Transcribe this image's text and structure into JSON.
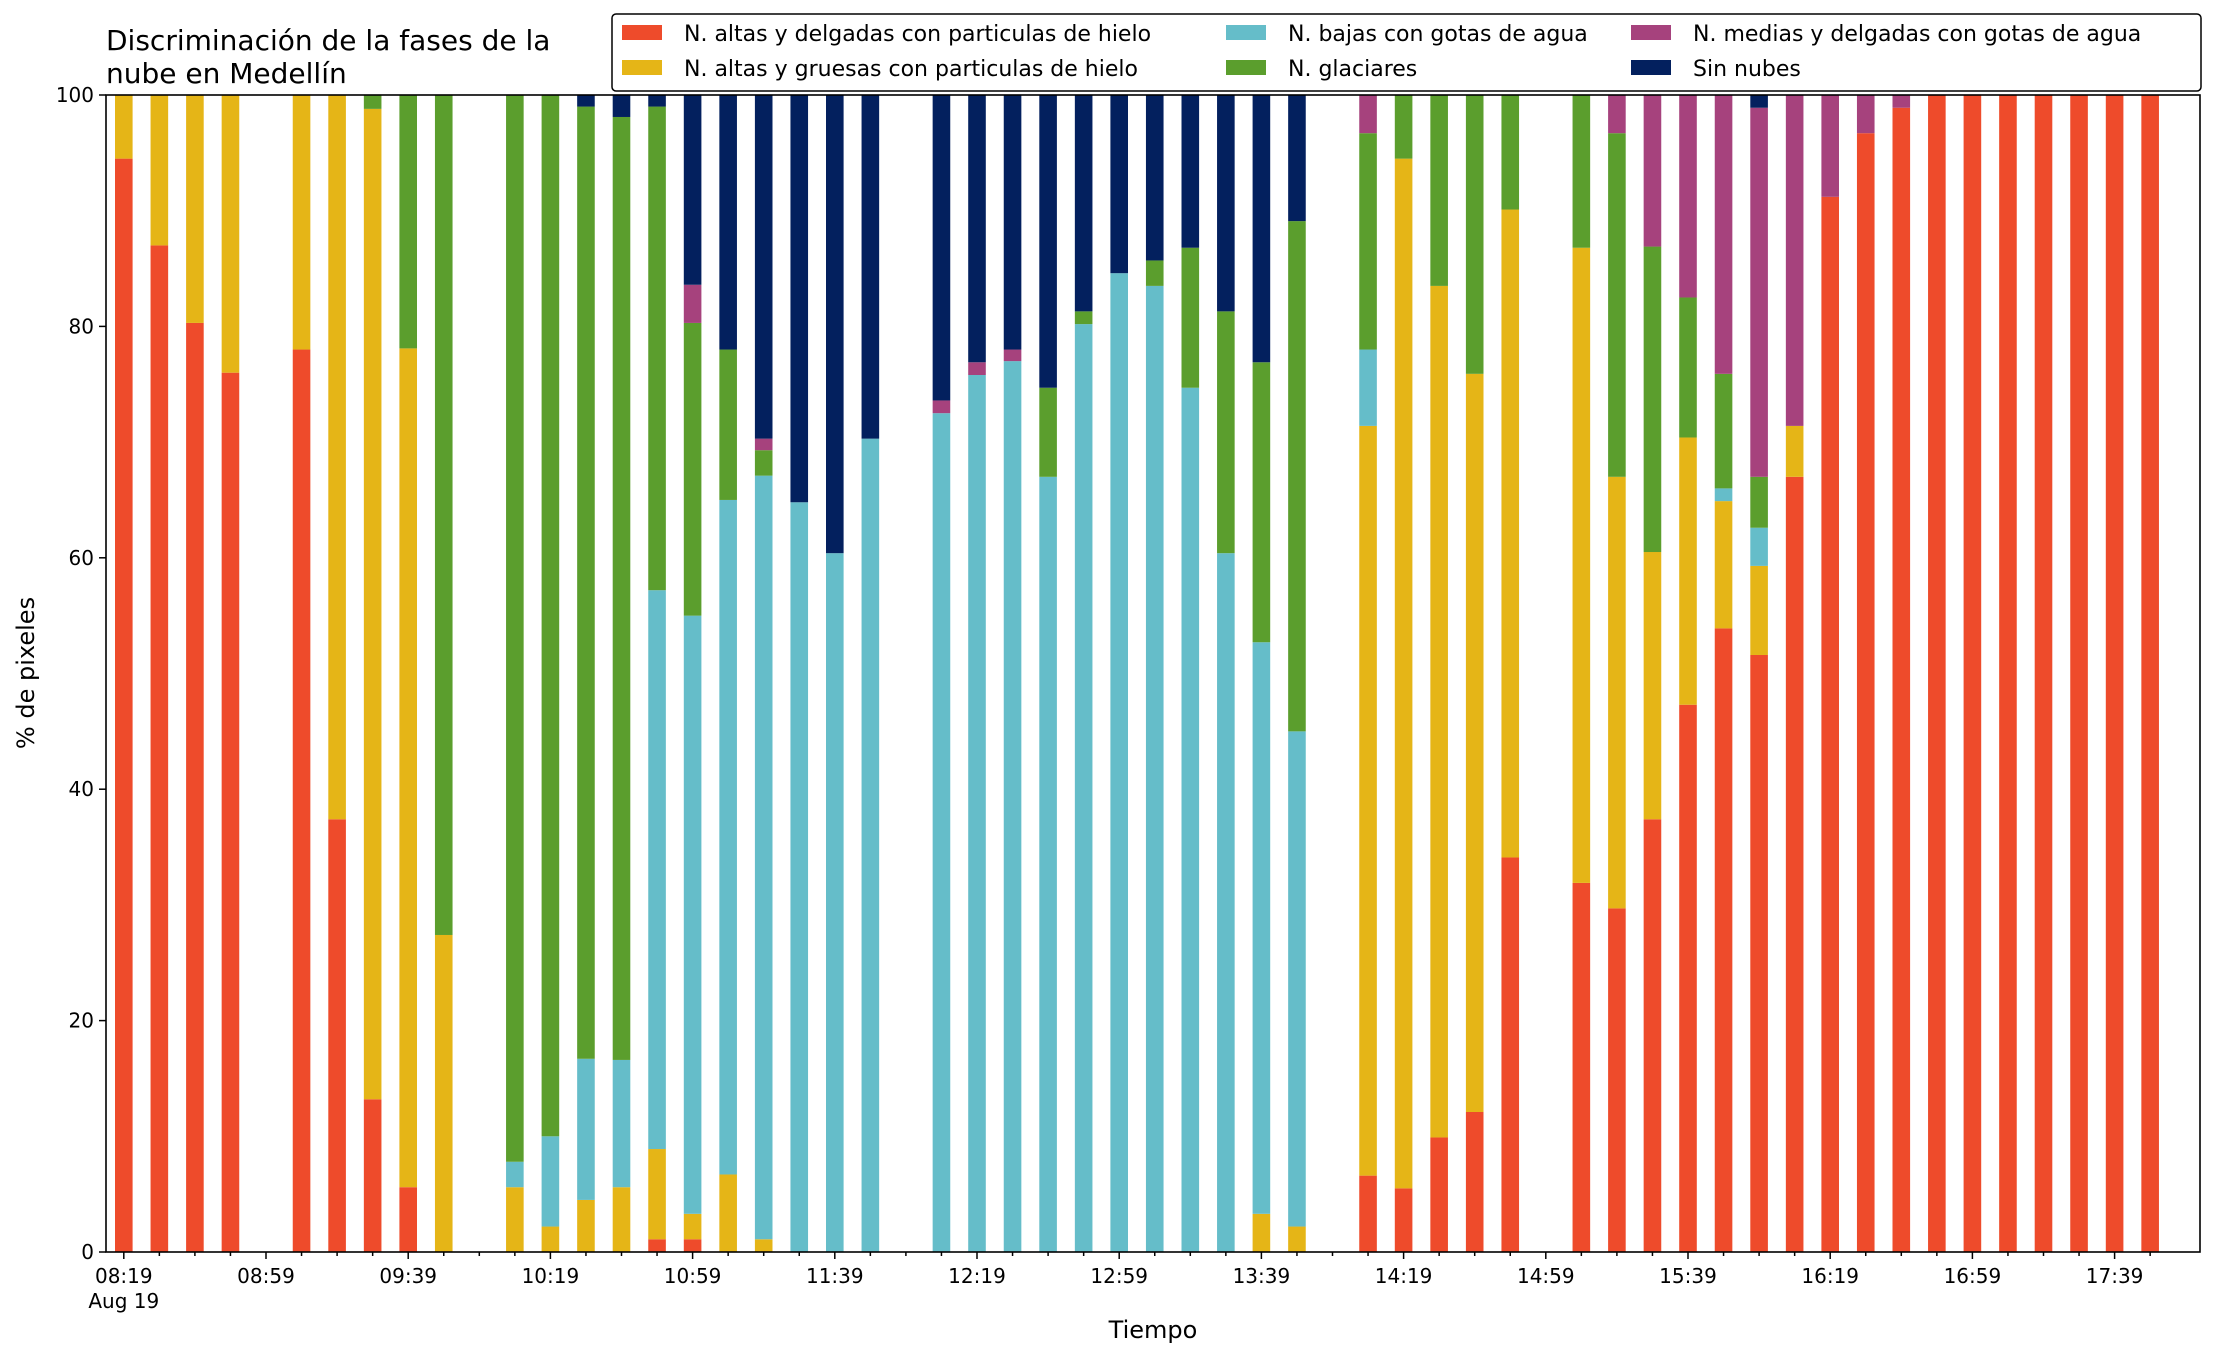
{
  "chart_data": {
    "type": "bar",
    "stacked": true,
    "title_lines": [
      "Discriminación de la fases de la",
      "nube en Medellín"
    ],
    "xlabel": "Tiempo",
    "ylabel": "% de pixeles",
    "ylim": [
      0,
      100
    ],
    "yticks": [
      "0",
      "20",
      "40",
      "60",
      "80",
      "100"
    ],
    "xtick_labels": [
      "08:19",
      "08:59",
      "09:39",
      "10:19",
      "10:59",
      "11:39",
      "12:19",
      "12:59",
      "13:39",
      "14:19",
      "14:59",
      "15:39",
      "16:19",
      "16:59",
      "17:39"
    ],
    "xtick_sublabel": "Aug 19",
    "grid": false,
    "legend_position": "top-right",
    "series": [
      {
        "name": "N. altas y delgadas con particulas de hielo",
        "color": "#ee4b2b"
      },
      {
        "name": "N. altas y gruesas con particulas de hielo",
        "color": "#e5b517"
      },
      {
        "name": "N. bajas con gotas de agua",
        "color": "#65bdc9"
      },
      {
        "name": "N. glaciares",
        "color": "#5b9e2d"
      },
      {
        "name": "N. medias y delgadas con gotas de agua",
        "color": "#a6427d"
      },
      {
        "name": "Sin nubes",
        "color": "#03205e"
      }
    ],
    "bars": [
      {
        "slot": 0,
        "values": [
          94.5,
          5.5,
          0,
          0,
          0,
          0
        ]
      },
      {
        "slot": 1,
        "values": [
          87,
          13,
          0,
          0,
          0,
          0
        ]
      },
      {
        "slot": 2,
        "values": [
          80.3,
          19.7,
          0,
          0,
          0,
          0
        ]
      },
      {
        "slot": 3,
        "values": [
          76,
          24,
          0,
          0,
          0,
          0
        ]
      },
      {
        "slot": 5,
        "values": [
          78,
          22,
          0,
          0,
          0,
          0
        ]
      },
      {
        "slot": 6,
        "values": [
          37.4,
          62.6,
          0,
          0,
          0,
          0
        ]
      },
      {
        "slot": 7,
        "values": [
          13.2,
          85.6,
          0,
          1.2,
          0,
          0
        ]
      },
      {
        "slot": 8,
        "values": [
          5.6,
          72.5,
          0,
          21.9,
          0,
          0
        ]
      },
      {
        "slot": 9,
        "values": [
          0,
          27.4,
          0,
          72.6,
          0,
          0
        ]
      },
      {
        "slot": 11,
        "values": [
          0,
          5.6,
          2.2,
          92.2,
          0,
          0
        ]
      },
      {
        "slot": 12,
        "values": [
          0,
          2.2,
          7.8,
          90,
          0,
          0
        ]
      },
      {
        "slot": 13,
        "values": [
          0,
          4.5,
          12.2,
          82.3,
          0,
          1
        ]
      },
      {
        "slot": 14,
        "values": [
          0,
          5.6,
          11,
          81.5,
          0,
          1.9
        ]
      },
      {
        "slot": 15,
        "values": [
          1.1,
          7.8,
          48.3,
          41.8,
          0,
          1
        ]
      },
      {
        "slot": 16,
        "values": [
          1.1,
          2.2,
          51.7,
          25.3,
          3.3,
          16.4
        ]
      },
      {
        "slot": 17,
        "values": [
          0,
          6.7,
          58.3,
          13,
          0,
          22
        ]
      },
      {
        "slot": 18,
        "values": [
          0,
          1.1,
          66,
          2.2,
          1,
          29.7
        ]
      },
      {
        "slot": 19,
        "values": [
          0,
          0,
          64.8,
          0,
          0,
          35.2
        ]
      },
      {
        "slot": 20,
        "values": [
          0,
          0,
          60.4,
          0,
          0,
          39.6
        ]
      },
      {
        "slot": 21,
        "values": [
          0,
          0,
          70.3,
          0,
          0,
          29.7
        ]
      },
      {
        "slot": 23,
        "values": [
          0,
          0,
          72.5,
          0,
          1.1,
          26.4
        ]
      },
      {
        "slot": 24,
        "values": [
          0,
          0,
          75.8,
          0,
          1.1,
          23.1
        ]
      },
      {
        "slot": 25,
        "values": [
          0,
          0,
          77,
          0,
          1,
          22
        ]
      },
      {
        "slot": 26,
        "values": [
          0,
          0,
          67,
          7.7,
          0,
          25.3
        ]
      },
      {
        "slot": 27,
        "values": [
          0,
          0,
          80.2,
          1.1,
          0,
          18.7
        ]
      },
      {
        "slot": 28,
        "values": [
          0,
          0,
          84.6,
          0,
          0,
          15.4
        ]
      },
      {
        "slot": 29,
        "values": [
          0,
          0,
          83.5,
          2.2,
          0,
          14.3
        ]
      },
      {
        "slot": 30,
        "values": [
          0,
          0,
          74.7,
          12.1,
          0,
          13.2
        ]
      },
      {
        "slot": 31,
        "values": [
          0,
          0,
          60.4,
          20.9,
          0,
          18.7
        ]
      },
      {
        "slot": 32,
        "values": [
          0,
          3.3,
          49.4,
          24.2,
          0,
          23.1
        ]
      },
      {
        "slot": 33,
        "values": [
          0,
          2.2,
          42.8,
          44.1,
          0,
          10.9
        ]
      },
      {
        "slot": 35,
        "values": [
          6.6,
          64.8,
          6.6,
          18.7,
          3.3,
          0
        ]
      },
      {
        "slot": 36,
        "values": [
          5.5,
          89,
          0,
          5.5,
          0,
          0
        ]
      },
      {
        "slot": 37,
        "values": [
          9.9,
          73.6,
          0,
          16.5,
          0,
          0
        ]
      },
      {
        "slot": 38,
        "values": [
          12.1,
          63.8,
          0,
          24.1,
          0,
          0
        ]
      },
      {
        "slot": 39,
        "values": [
          34.1,
          56,
          0,
          9.9,
          0,
          0
        ]
      },
      {
        "slot": 41,
        "values": [
          31.9,
          54.9,
          0,
          13.2,
          0,
          0
        ]
      },
      {
        "slot": 42,
        "values": [
          29.7,
          37.3,
          0,
          29.7,
          3.3,
          0
        ]
      },
      {
        "slot": 43,
        "values": [
          37.4,
          23.1,
          0,
          26.4,
          13.1,
          0
        ]
      },
      {
        "slot": 44,
        "values": [
          47.3,
          23.1,
          0,
          12.1,
          17.5,
          0
        ]
      },
      {
        "slot": 45,
        "values": [
          53.9,
          11,
          1.1,
          9.9,
          24.1,
          0
        ]
      },
      {
        "slot": 46,
        "values": [
          51.6,
          7.7,
          3.3,
          4.4,
          31.9,
          1.1
        ]
      },
      {
        "slot": 47,
        "values": [
          67,
          4.4,
          0,
          0,
          28.6,
          0
        ]
      },
      {
        "slot": 48,
        "values": [
          91.2,
          0,
          0,
          0,
          8.8,
          0
        ]
      },
      {
        "slot": 49,
        "values": [
          96.7,
          0,
          0,
          0,
          3.3,
          0
        ]
      },
      {
        "slot": 50,
        "values": [
          98.9,
          0,
          0,
          0,
          1.1,
          0
        ]
      },
      {
        "slot": 51,
        "values": [
          100,
          0,
          0,
          0,
          0,
          0
        ]
      },
      {
        "slot": 52,
        "values": [
          100,
          0,
          0,
          0,
          0,
          0
        ]
      },
      {
        "slot": 53,
        "values": [
          100,
          0,
          0,
          0,
          0,
          0
        ]
      },
      {
        "slot": 54,
        "values": [
          100,
          0,
          0,
          0,
          0,
          0
        ]
      },
      {
        "slot": 55,
        "values": [
          100,
          0,
          0,
          0,
          0,
          0
        ]
      },
      {
        "slot": 56,
        "values": [
          100,
          0,
          0,
          0,
          0,
          0
        ]
      },
      {
        "slot": 57,
        "values": [
          100,
          0,
          0,
          0,
          0,
          0
        ]
      }
    ]
  }
}
